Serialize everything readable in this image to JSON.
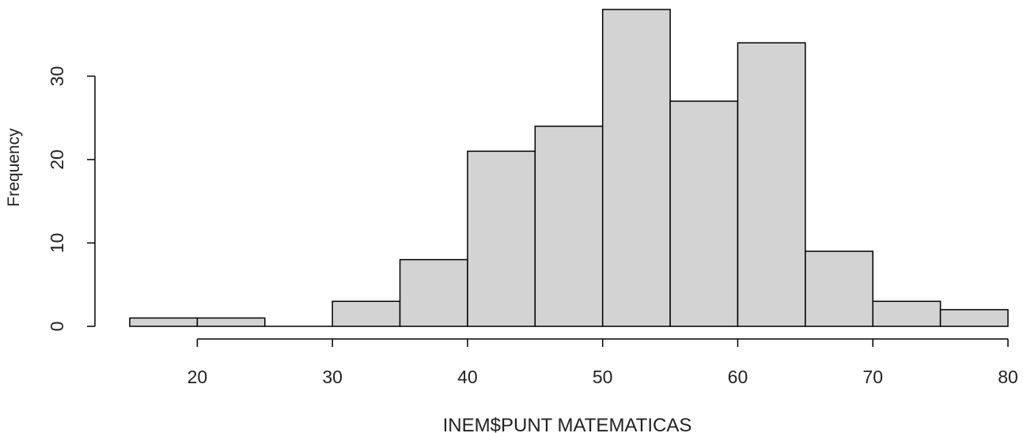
{
  "chart_data": {
    "type": "bar",
    "title": "",
    "xlabel": "INEM$PUNT  MATEMATICAS",
    "ylabel": "Frequency",
    "bins": [
      {
        "x0": 15,
        "x1": 20,
        "count": 1
      },
      {
        "x0": 20,
        "x1": 25,
        "count": 1
      },
      {
        "x0": 25,
        "x1": 30,
        "count": 0
      },
      {
        "x0": 30,
        "x1": 35,
        "count": 3
      },
      {
        "x0": 35,
        "x1": 40,
        "count": 8
      },
      {
        "x0": 40,
        "x1": 45,
        "count": 21
      },
      {
        "x0": 45,
        "x1": 50,
        "count": 24
      },
      {
        "x0": 50,
        "x1": 55,
        "count": 38
      },
      {
        "x0": 55,
        "x1": 60,
        "count": 27
      },
      {
        "x0": 60,
        "x1": 65,
        "count": 34
      },
      {
        "x0": 65,
        "x1": 70,
        "count": 9
      },
      {
        "x0": 70,
        "x1": 75,
        "count": 3
      },
      {
        "x0": 75,
        "x1": 80,
        "count": 2
      }
    ],
    "xticks": [
      20,
      30,
      40,
      50,
      60,
      70,
      80
    ],
    "yticks": [
      0,
      10,
      20,
      30
    ],
    "xlim": [
      15,
      80
    ],
    "ylim": [
      0,
      38
    ],
    "grid": false,
    "bar_fill": "#d3d3d3",
    "bar_stroke": "#000000"
  }
}
